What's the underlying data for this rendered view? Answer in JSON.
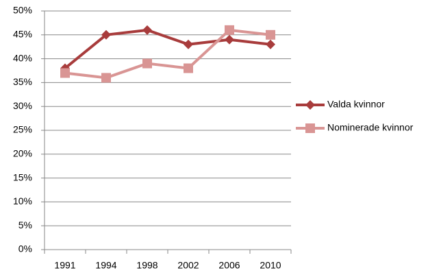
{
  "chart_data": {
    "type": "line",
    "categories": [
      "1991",
      "1994",
      "1998",
      "2002",
      "2006",
      "2010"
    ],
    "series": [
      {
        "name": "Valda kvinnor",
        "color": "#a83c3c",
        "marker": "diamond",
        "values": [
          38,
          45,
          46,
          43,
          44,
          43
        ]
      },
      {
        "name": "Nominerade kvinnor",
        "color": "#d99594",
        "marker": "square",
        "values": [
          37,
          36,
          39,
          38,
          46,
          45
        ]
      }
    ],
    "ylim": [
      0,
      50
    ],
    "yticks": [
      {
        "value": 0,
        "label": "0%"
      },
      {
        "value": 5,
        "label": "5%"
      },
      {
        "value": 10,
        "label": "10%"
      },
      {
        "value": 15,
        "label": "15%"
      },
      {
        "value": 20,
        "label": "20%"
      },
      {
        "value": 25,
        "label": "25%"
      },
      {
        "value": 30,
        "label": "30%"
      },
      {
        "value": 35,
        "label": "35%"
      },
      {
        "value": 40,
        "label": "40%"
      },
      {
        "value": 45,
        "label": "45%"
      },
      {
        "value": 50,
        "label": "50%"
      }
    ],
    "grid": true,
    "legend": "right"
  }
}
